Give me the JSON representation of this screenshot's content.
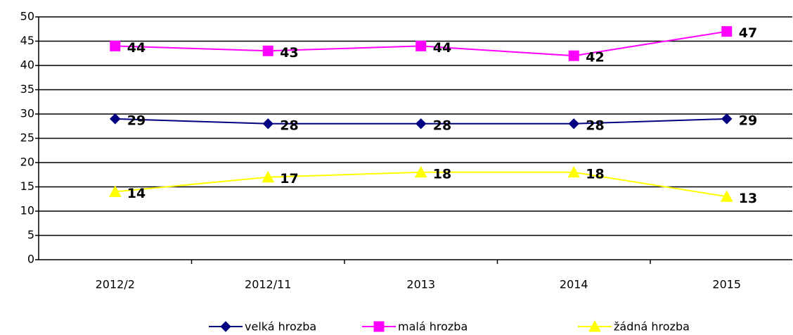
{
  "chart_data": {
    "type": "line",
    "categories": [
      "2012/2",
      "2012/11",
      "2013",
      "2014",
      "2015"
    ],
    "series": [
      {
        "name": "velká hrozba",
        "color": "#000080",
        "marker": "diamond",
        "values": [
          29,
          28,
          28,
          28,
          29
        ]
      },
      {
        "name": "malá hrozba",
        "color": "#ff00ff",
        "marker": "square",
        "values": [
          44,
          43,
          44,
          42,
          47
        ]
      },
      {
        "name": "žádná hrozba",
        "color": "#ffff00",
        "marker": "triangle",
        "values": [
          14,
          17,
          18,
          18,
          13
        ]
      }
    ],
    "ylim": [
      0,
      50
    ],
    "yticks": [
      0,
      5,
      10,
      15,
      20,
      25,
      30,
      35,
      40,
      45,
      50
    ],
    "grid": true,
    "legend": "bottom"
  }
}
